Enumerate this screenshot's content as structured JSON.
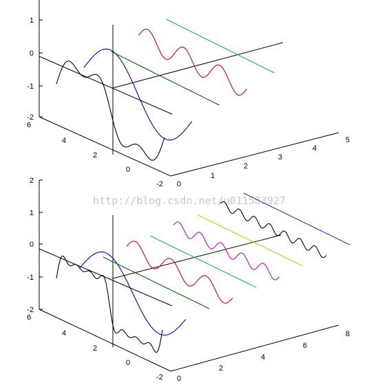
{
  "watermark": "http://blog.csdn.net/u011583927",
  "chart_data": [
    {
      "type": "line",
      "z_ticks": [
        "1",
        "0",
        "-1",
        "-2"
      ],
      "y_ticks": [
        "6",
        "4",
        "2",
        "0",
        "-2"
      ],
      "x_ticks": [
        "0",
        "1",
        "2",
        "3",
        "4",
        "5"
      ],
      "zlim": [
        -2,
        1.2
      ],
      "series": [
        {
          "color": "#000000",
          "wave": "square-partial-sum",
          "harmonics": 3
        },
        {
          "color": "#0000cc",
          "wave": "fundamental-sine"
        },
        {
          "color": "#006600",
          "wave": "flat-line"
        },
        {
          "color": "#dd0000",
          "wave": "third-harmonic"
        },
        {
          "color": "#00aacc",
          "wave": "flat-line"
        }
      ]
    },
    {
      "type": "line",
      "z_ticks": [
        "2",
        "1",
        "0",
        "-1",
        "-2"
      ],
      "y_ticks": [
        "6",
        "4",
        "2",
        "0",
        "-2"
      ],
      "x_ticks": [
        "0",
        "2",
        "4",
        "6",
        "8"
      ],
      "zlim": [
        -2,
        2
      ],
      "series": [
        {
          "color": "#000000",
          "wave": "square-partial-sum",
          "harmonics": 7
        },
        {
          "color": "#0000cc",
          "wave": "fundamental-sine"
        },
        {
          "color": "#006600",
          "wave": "flat-line"
        },
        {
          "color": "#dd0000",
          "wave": "third-harmonic"
        },
        {
          "color": "#00aacc",
          "wave": "flat-line"
        },
        {
          "color": "#cc00cc",
          "wave": "fifth-harmonic"
        },
        {
          "color": "#cccc00",
          "wave": "flat-line"
        },
        {
          "color": "#000000",
          "wave": "seventh-harmonic"
        },
        {
          "color": "#3333bb",
          "wave": "flat-line"
        }
      ]
    }
  ]
}
